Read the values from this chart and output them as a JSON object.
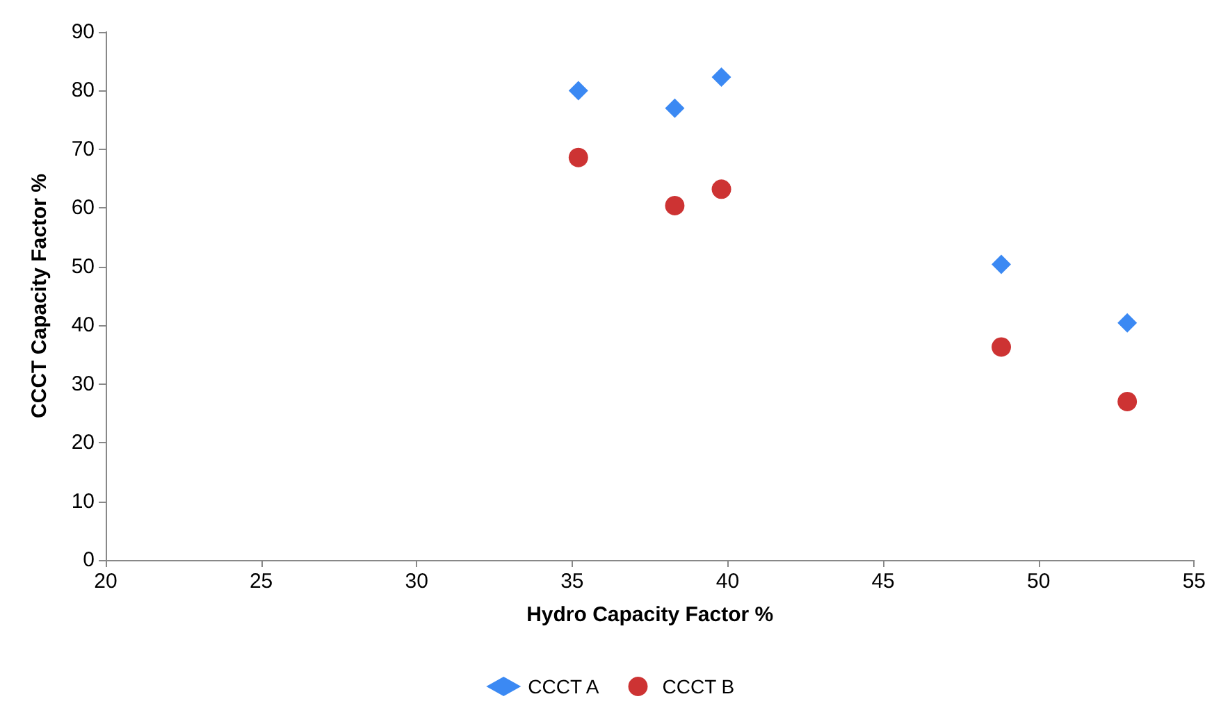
{
  "chart_data": {
    "type": "scatter",
    "xlabel": "Hydro Capacity Factor %",
    "ylabel": "CCCT Capacity Factor %",
    "xlim": [
      20,
      55
    ],
    "xticks": [
      20,
      25,
      30,
      35,
      40,
      45,
      50,
      55
    ],
    "ylim": [
      0,
      90
    ],
    "yticks": [
      0,
      10,
      20,
      30,
      40,
      50,
      60,
      70,
      80,
      90
    ],
    "grid": false,
    "legend": "bottom",
    "series": [
      {
        "name": "CCCT A",
        "color": "#0a6cf0",
        "marker": "diamond",
        "x": [
          35.2,
          38.3,
          39.8,
          48.8,
          52.85
        ],
        "values": [
          80,
          77,
          82.3,
          50.4,
          40.4
        ]
      },
      {
        "name": "CCCT B",
        "color": "#c00000",
        "marker": "circle",
        "x": [
          35.2,
          38.3,
          39.8,
          48.8,
          52.85
        ],
        "values": [
          68.6,
          60.4,
          63.2,
          36.3,
          27
        ]
      }
    ]
  }
}
